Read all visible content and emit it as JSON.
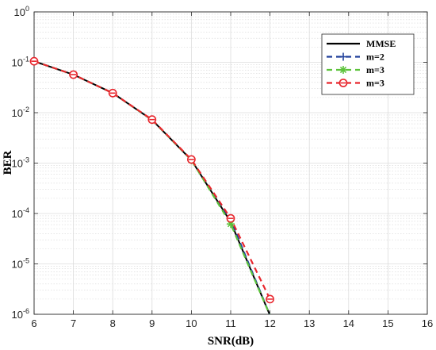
{
  "chart_data": {
    "type": "line",
    "xlabel": "SNR(dB)",
    "ylabel": "BER",
    "xlim": [
      6,
      16
    ],
    "ylim": [
      1e-06,
      1
    ],
    "yscale": "log",
    "grid": true,
    "legend_position": "top-right",
    "x_ticks": [
      6,
      7,
      8,
      9,
      10,
      11,
      12,
      13,
      14,
      15,
      16
    ],
    "y_ticks": [
      {
        "value": 1,
        "base": "10",
        "exp": "0"
      },
      {
        "value": 0.1,
        "base": "10",
        "exp": "-1"
      },
      {
        "value": 0.01,
        "base": "10",
        "exp": "-2"
      },
      {
        "value": 0.001,
        "base": "10",
        "exp": "-3"
      },
      {
        "value": 0.0001,
        "base": "10",
        "exp": "-4"
      },
      {
        "value": 1e-05,
        "base": "10",
        "exp": "-5"
      },
      {
        "value": 1e-06,
        "base": "10",
        "exp": "-6"
      }
    ],
    "series": [
      {
        "name": "MMSE",
        "color": "#000000",
        "dash": "solid",
        "marker": "none",
        "x": [
          6,
          7,
          8,
          9,
          10,
          11,
          12
        ],
        "y": [
          0.105,
          0.057,
          0.0245,
          0.0072,
          0.00115,
          6.8e-05,
          9.5e-07
        ]
      },
      {
        "name": "m=2",
        "color": "#1f3f9a",
        "dash": "dashed",
        "marker": "plus",
        "x": [
          6,
          7,
          8,
          9,
          10,
          11,
          12
        ],
        "y": [
          0.105,
          0.057,
          0.0245,
          0.0072,
          0.00115,
          7.5e-05,
          9.5e-07
        ]
      },
      {
        "name": "m=3",
        "color": "#5cc23a",
        "dash": "dashed",
        "marker": "asterisk",
        "x": [
          6,
          7,
          8,
          9,
          10,
          11,
          12
        ],
        "y": [
          0.105,
          0.057,
          0.0245,
          0.0072,
          0.00115,
          6.2e-05,
          9.5e-07
        ]
      },
      {
        "name": "m=3",
        "color": "#e8262d",
        "dash": "dashed",
        "marker": "circle-minus",
        "x": [
          6,
          7,
          8,
          9,
          10,
          11,
          12
        ],
        "y": [
          0.105,
          0.057,
          0.0245,
          0.0073,
          0.00118,
          8e-05,
          2e-06
        ]
      }
    ]
  }
}
